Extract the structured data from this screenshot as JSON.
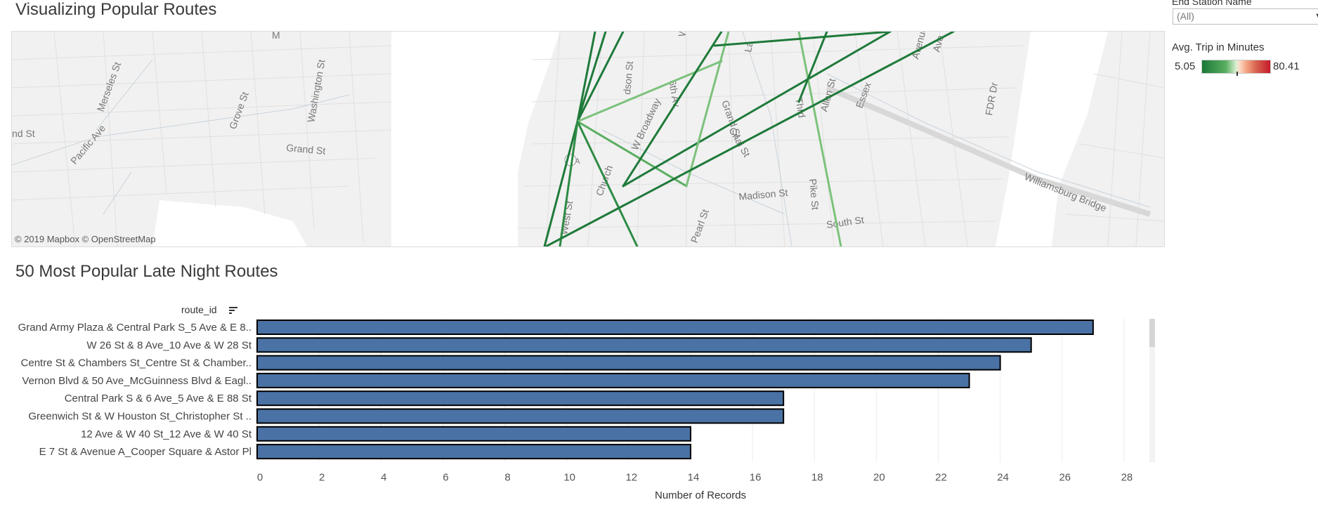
{
  "map_title": "Visualizing Popular Routes",
  "chart_title": "50 Most Popular Late Night Routes",
  "map": {
    "attribution": "© 2019 Mapbox  © OpenStreetMap",
    "street_labels": [
      "nd St",
      "Pacific Ave",
      "Merseles St",
      "Grove St",
      "Washington St",
      "M",
      "Grand St",
      "dson St",
      "6th Av",
      "W Broadway",
      "Grand St",
      "Cnal St",
      "Church",
      "9A",
      "West St",
      "Madison St",
      "Pike St",
      "South St",
      "Williamsburg Bridge",
      "FDR Dr",
      "Essex",
      "Allen St",
      "Avenue",
      "Ave",
      "Thrd",
      "La",
      "W",
      "Pearl St"
    ]
  },
  "filter": {
    "label": "End Station Name",
    "value": "(All)",
    "icon": "chevron-down-icon"
  },
  "legend": {
    "title": "Avg. Trip in Minutes",
    "min": "5.05",
    "max": "80.41",
    "low_color": "#1b7837",
    "high_color": "#c61a2a"
  },
  "route_header": {
    "label": "route_id",
    "icon": "sort-descending-icon"
  },
  "chart_data": {
    "type": "bar",
    "orientation": "horizontal",
    "categories": [
      "Grand Army Plaza & Central Park S_5 Ave & E 8..",
      "W 26 St & 8 Ave_10 Ave & W 28 St",
      "Centre St & Chambers St_Centre St & Chamber..",
      "Vernon Blvd & 50 Ave_McGuinness Blvd & Eagl..",
      "Central Park S & 6 Ave_5 Ave & E 88 St",
      "Greenwich St & W Houston St_Christopher St ..",
      "12 Ave & W 40 St_12 Ave & W 40 St",
      "E 7 St & Avenue A_Cooper Square & Astor Pl"
    ],
    "values": [
      27,
      25,
      24,
      23,
      17,
      17,
      14,
      14
    ],
    "xlabel": "Number of Records",
    "xlim": [
      0,
      29
    ],
    "ticks": [
      0,
      2,
      4,
      6,
      8,
      10,
      12,
      14,
      16,
      18,
      20,
      22,
      24,
      26,
      28
    ],
    "bar_color": "#4a72a4",
    "grid": true
  }
}
